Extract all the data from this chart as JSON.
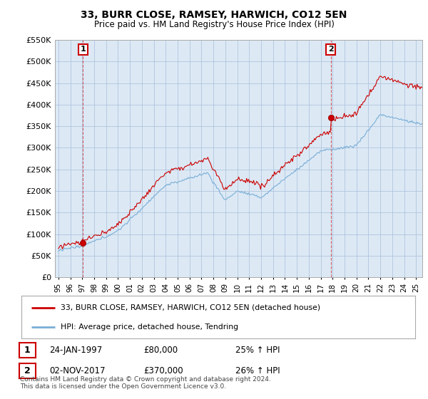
{
  "title": "33, BURR CLOSE, RAMSEY, HARWICH, CO12 5EN",
  "subtitle": "Price paid vs. HM Land Registry's House Price Index (HPI)",
  "legend_line1": "33, BURR CLOSE, RAMSEY, HARWICH, CO12 5EN (detached house)",
  "legend_line2": "HPI: Average price, detached house, Tendring",
  "annotation1_date": "24-JAN-1997",
  "annotation1_price": "£80,000",
  "annotation1_hpi": "25% ↑ HPI",
  "annotation2_date": "02-NOV-2017",
  "annotation2_price": "£370,000",
  "annotation2_hpi": "26% ↑ HPI",
  "footer": "Contains HM Land Registry data © Crown copyright and database right 2024.\nThis data is licensed under the Open Government Licence v3.0.",
  "sale1_x": 1997.07,
  "sale1_y": 80000,
  "sale2_x": 2017.84,
  "sale2_y": 370000,
  "red_color": "#cc0000",
  "blue_color": "#7aaed6",
  "dashed_vline_color": "#cc0000",
  "grid_color": "#b0c4de",
  "background_color": "#ffffff",
  "plot_bg_color": "#dce9f5",
  "ylim_min": 0,
  "ylim_max": 550000,
  "xlim_min": 1994.7,
  "xlim_max": 2025.5,
  "yticks": [
    0,
    50000,
    100000,
    150000,
    200000,
    250000,
    300000,
    350000,
    400000,
    450000,
    500000,
    550000
  ],
  "ytick_labels": [
    "£0",
    "£50K",
    "£100K",
    "£150K",
    "£200K",
    "£250K",
    "£300K",
    "£350K",
    "£400K",
    "£450K",
    "£500K",
    "£550K"
  ],
  "xticks": [
    1995,
    1996,
    1997,
    1998,
    1999,
    2000,
    2001,
    2002,
    2003,
    2004,
    2005,
    2006,
    2007,
    2008,
    2009,
    2010,
    2011,
    2012,
    2013,
    2014,
    2015,
    2016,
    2017,
    2018,
    2019,
    2020,
    2021,
    2022,
    2023,
    2024,
    2025
  ],
  "xtick_labels": [
    "95",
    "96",
    "97",
    "98",
    "99",
    "00",
    "01",
    "02",
    "03",
    "04",
    "05",
    "06",
    "07",
    "08",
    "09",
    "10",
    "11",
    "12",
    "13",
    "14",
    "15",
    "16",
    "17",
    "18",
    "19",
    "20",
    "21",
    "22",
    "23",
    "24",
    "25"
  ]
}
